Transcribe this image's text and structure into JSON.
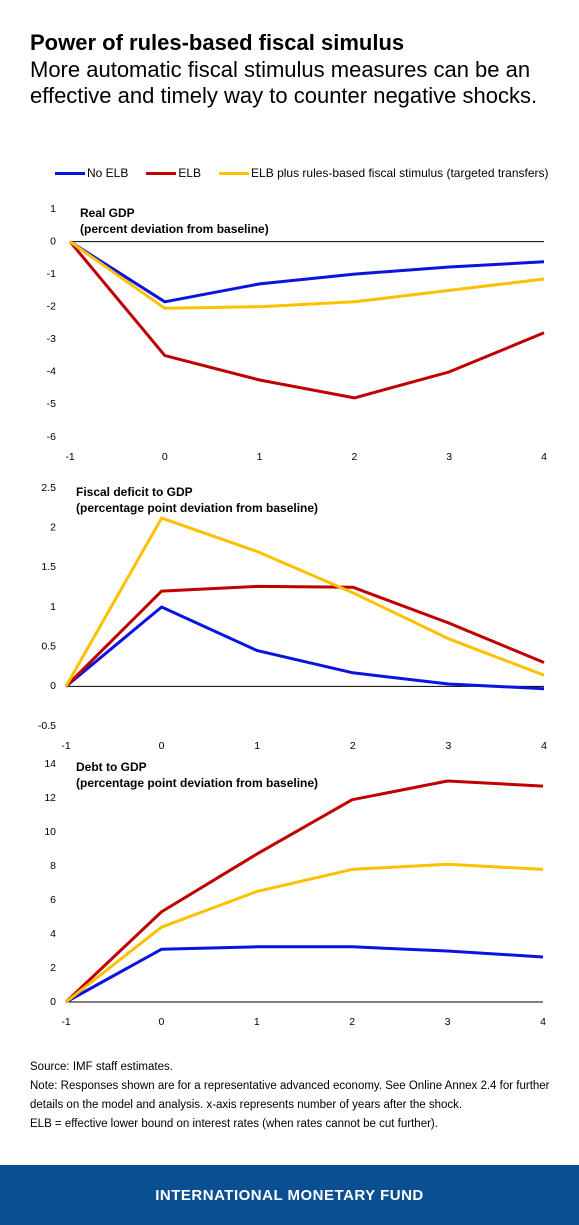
{
  "header": {
    "title": "Power of rules-based fiscal simulus",
    "subtitle": "More automatic fiscal stimulus measures can be an effective and timely way to counter negative shocks."
  },
  "legend": {
    "items": [
      {
        "label": "No ELB",
        "color": "#0b13e0"
      },
      {
        "label": "ELB",
        "color": "#c00000"
      },
      {
        "label": "ELB plus rules-based fiscal stimulus (targeted transfers)",
        "color": "#ffc000"
      }
    ]
  },
  "chart_data": [
    {
      "type": "line",
      "title": "Real GDP",
      "subtitle": "(percent deviation from baseline)",
      "xlabel": "",
      "ylabel": "",
      "x": [
        -1,
        0,
        1,
        2,
        3,
        4
      ],
      "x_tick_labels": [
        "-1",
        "0",
        "1",
        "2",
        "3",
        "4"
      ],
      "ylim": [
        -6,
        1
      ],
      "y_ticks": [
        1,
        0,
        -1,
        -2,
        -3,
        -4,
        -5,
        -6
      ],
      "y_tick_labels": [
        "1",
        "0",
        "-1",
        "-2",
        "-3",
        "-4",
        "-5",
        "-6"
      ],
      "grid": false,
      "series": [
        {
          "name": "No ELB",
          "color": "#0b13e0",
          "values": [
            0,
            -1.85,
            -1.3,
            -1.0,
            -0.78,
            -0.62
          ]
        },
        {
          "name": "ELB",
          "color": "#c00000",
          "values": [
            0,
            -3.5,
            -4.25,
            -4.8,
            -4.0,
            -2.8
          ]
        },
        {
          "name": "ELB plus rules-based fiscal stimulus (targeted transfers)",
          "color": "#ffc000",
          "values": [
            0,
            -2.05,
            -2.0,
            -1.85,
            -1.5,
            -1.15
          ]
        }
      ]
    },
    {
      "type": "line",
      "title": "Fiscal deficit to GDP",
      "subtitle": "(percentage point deviation from baseline)",
      "xlabel": "",
      "ylabel": "",
      "x": [
        -1,
        0,
        1,
        2,
        3,
        4
      ],
      "x_tick_labels": [
        "-1",
        "0",
        "1",
        "2",
        "3",
        "4"
      ],
      "ylim": [
        -0.5,
        2.5
      ],
      "y_ticks": [
        2.5,
        2,
        1.5,
        1,
        0.5,
        0,
        -0.5
      ],
      "y_tick_labels": [
        "2.5",
        "2",
        "1.5",
        "1",
        "0.5",
        "0",
        "-0.5"
      ],
      "grid": false,
      "series": [
        {
          "name": "No ELB",
          "color": "#0b13e0",
          "values": [
            0,
            1.0,
            0.45,
            0.17,
            0.03,
            -0.03
          ]
        },
        {
          "name": "ELB",
          "color": "#c00000",
          "values": [
            0,
            1.2,
            1.26,
            1.25,
            0.8,
            0.3
          ]
        },
        {
          "name": "ELB plus rules-based fiscal stimulus (targeted transfers)",
          "color": "#ffc000",
          "values": [
            0,
            2.12,
            1.7,
            1.18,
            0.6,
            0.14
          ]
        }
      ]
    },
    {
      "type": "line",
      "title": "Debt to GDP",
      "subtitle": "(percentage point deviation from baseline)",
      "xlabel": "",
      "ylabel": "",
      "x": [
        -1,
        0,
        1,
        2,
        3,
        4
      ],
      "x_tick_labels": [
        "-1",
        "0",
        "1",
        "2",
        "3",
        "4"
      ],
      "ylim": [
        0,
        14
      ],
      "y_ticks": [
        14,
        12,
        10,
        8,
        6,
        4,
        2,
        0
      ],
      "y_tick_labels": [
        "14",
        "12",
        "10",
        "8",
        "6",
        "4",
        "2",
        "0"
      ],
      "grid": false,
      "series": [
        {
          "name": "No ELB",
          "color": "#0b13e0",
          "values": [
            0,
            3.1,
            3.25,
            3.25,
            3.0,
            2.65
          ]
        },
        {
          "name": "ELB",
          "color": "#c00000",
          "values": [
            0,
            5.3,
            8.7,
            11.9,
            13.0,
            12.7
          ]
        },
        {
          "name": "ELB plus rules-based fiscal stimulus (targeted transfers)",
          "color": "#ffc000",
          "values": [
            0,
            4.4,
            6.5,
            7.8,
            8.1,
            7.8
          ]
        }
      ]
    }
  ],
  "notes": {
    "source": "Source: IMF staff estimates.",
    "note": "Note: Responses shown are for a representative advanced economy. See Online Annex 2.4 for further details on the model and analysis. x-axis represents number of years after the shock.",
    "elb": "ELB = effective lower bound on interest rates (when rates cannot be cut further)."
  },
  "footer": {
    "org": "INTERNATIONAL MONETARY FUND"
  }
}
